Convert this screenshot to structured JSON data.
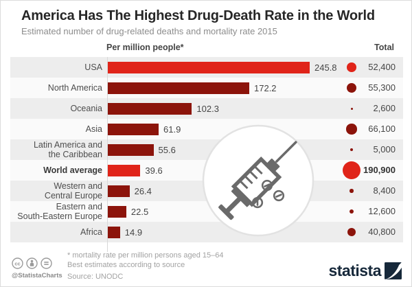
{
  "header": {
    "title": "America Has The Highest Drug-Death Rate in the World",
    "subtitle": "Estimated number of drug-related deaths and mortality rate 2015"
  },
  "columns": {
    "rate_header": "Per million people*",
    "total_header": "Total"
  },
  "chart_data": {
    "type": "bar",
    "title": "America Has The Highest Drug-Death Rate in the World",
    "subtitle": "Estimated number of drug-related deaths and mortality rate 2015",
    "xlabel": "Per million people*",
    "total_label": "Total",
    "xlim": [
      0,
      245.8
    ],
    "grid": false,
    "legend_position": "none",
    "rows": [
      {
        "label_lines": [
          "USA"
        ],
        "rate": 245.8,
        "total": 52400,
        "total_formatted": "52,400",
        "highlight": true,
        "emphasis": false
      },
      {
        "label_lines": [
          "North America"
        ],
        "rate": 172.2,
        "total": 55300,
        "total_formatted": "55,300",
        "highlight": false,
        "emphasis": false
      },
      {
        "label_lines": [
          "Oceania"
        ],
        "rate": 102.3,
        "total": 2600,
        "total_formatted": "2,600",
        "highlight": false,
        "emphasis": false
      },
      {
        "label_lines": [
          "Asia"
        ],
        "rate": 61.9,
        "total": 66100,
        "total_formatted": "66,100",
        "highlight": false,
        "emphasis": false
      },
      {
        "label_lines": [
          "Latin America and",
          "the Caribbean"
        ],
        "rate": 55.6,
        "total": 5000,
        "total_formatted": "5,000",
        "highlight": false,
        "emphasis": false
      },
      {
        "label_lines": [
          "World average"
        ],
        "rate": 39.6,
        "total": 190900,
        "total_formatted": "190,900",
        "highlight": true,
        "emphasis": true
      },
      {
        "label_lines": [
          "Western and",
          "Central Europe"
        ],
        "rate": 26.4,
        "total": 8400,
        "total_formatted": "8,400",
        "highlight": false,
        "emphasis": false
      },
      {
        "label_lines": [
          "Eastern and",
          "South-Eastern Europe"
        ],
        "rate": 22.5,
        "total": 12600,
        "total_formatted": "12,600",
        "highlight": false,
        "emphasis": false
      },
      {
        "label_lines": [
          "Africa"
        ],
        "rate": 14.9,
        "total": 40800,
        "total_formatted": "40,800",
        "highlight": false,
        "emphasis": false
      }
    ],
    "colors": {
      "highlight_bar": "#e02419",
      "default_bar": "#8c140b",
      "row_stripe": "#ededed",
      "row_plain": "#fafafa"
    }
  },
  "footer": {
    "footnote_line1": "* mortality rate per million persons aged 15–64",
    "footnote_line2": "Best estimates according to source",
    "source": "Source: UNODC",
    "credit": "@StatistaCharts",
    "brand": "statista"
  }
}
